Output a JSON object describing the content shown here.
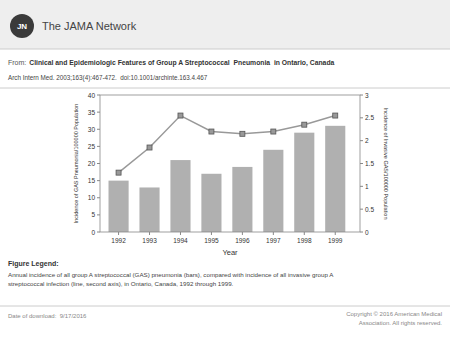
{
  "chart_data": {
    "type": "bar",
    "title": "Clinical and Epidemiologic Features of Group A Streptococcal  Pneumonia  in Ontario, Canada",
    "subtitle": "Arch Intern Med. 2003;163(4):467-472.  doi:10.1001/archinte.163.4.467",
    "xlabel": "Year",
    "ylabel": "Incidence of GAS Pneumonia/100000 Population",
    "y2label": "Incidence of Invasive GAS/100000 Population",
    "x": [
      1992,
      1993,
      1994,
      1995,
      1996,
      1997,
      1998,
      1999
    ],
    "xlim": [
      1991.4,
      1999.8
    ],
    "xticks": [
      1992,
      1993,
      1994,
      1995,
      1996,
      1997,
      1998,
      1999
    ],
    "ylim": [
      0,
      40
    ],
    "yticks": [
      0,
      5,
      10,
      15,
      20,
      25,
      30,
      35,
      40
    ],
    "y2lim": [
      0,
      3.0
    ],
    "y2ticks": [
      0,
      0.5,
      1.0,
      1.5,
      2.0,
      2.5,
      3.0
    ],
    "grid": false,
    "series": [
      {
        "type": "bar",
        "color": "#b0b0b0",
        "values": [
          15,
          13,
          21,
          17,
          19,
          24,
          29,
          31
        ]
      },
      {
        "type": "line",
        "axis": "y2",
        "color": "#999999",
        "marker": "square",
        "values": [
          1.3,
          1.85,
          2.55,
          2.2,
          2.15,
          2.2,
          2.35,
          2.55
        ]
      }
    ],
    "annotations": [
      "JN",
      "The JAMA Network",
      "From:",
      "Figure Legend:",
      "Annual incidence of all group A streptococcal (GAS) pneumonia (bars), compared with incidence of all invasive group A",
      "streptococcal infection (line, second axis), in Ontario, Canada, 1992 through 1999.",
      "Date of download:  9/17/2016",
      "Copyright © 2016 American Medical",
      "Association. All rights reserved."
    ]
  }
}
